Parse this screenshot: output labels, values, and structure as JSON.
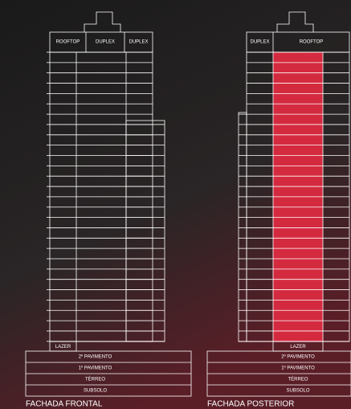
{
  "facades": [
    {
      "title": "FACHADA FRONTAL",
      "top_labels": [
        "ROOFTOP",
        "DUPLEX",
        "DUPLEX"
      ],
      "tower_label": "LAZER",
      "base_levels": [
        "2º PAVIMENTO",
        "1º PAVIMENTO",
        "TÉRREO",
        "SUBSOLO"
      ]
    },
    {
      "title": "FACHADA POSTERIOR",
      "top_labels": [
        "DUPLEX",
        "ROOFTOP"
      ],
      "tower_label": "LAZER",
      "base_levels": [
        "2º PAVIMENTO",
        "1º PAVIMENTO",
        "TÉRREO",
        "SUBSOLO"
      ]
    }
  ]
}
